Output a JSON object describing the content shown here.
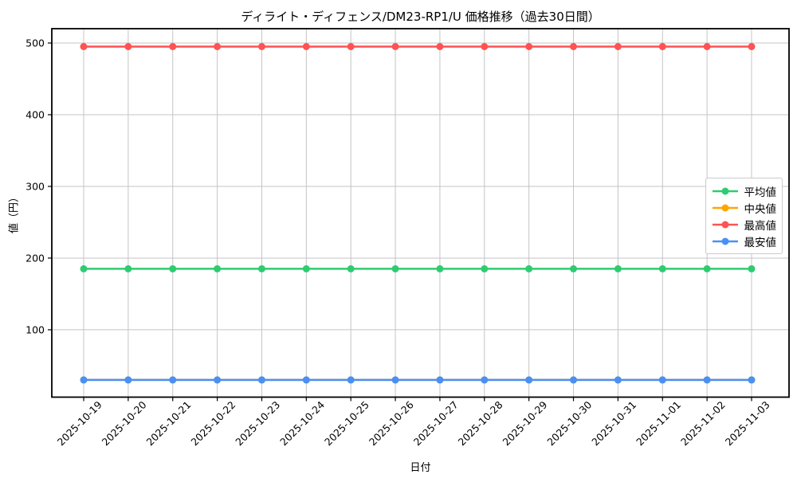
{
  "figure": {
    "title": "ディライト・ディフェンス/DM23-RP1/U 価格推移（過去30日間）",
    "xlabel": "日付",
    "ylabel": "値（円）"
  },
  "chart_data": {
    "type": "line",
    "title": "ディライト・ディフェンス/DM23-RP1/U 価格推移（過去30日間）",
    "xlabel": "日付",
    "ylabel": "値（円）",
    "categories": [
      "2025-10-19",
      "2025-10-20",
      "2025-10-21",
      "2025-10-22",
      "2025-10-23",
      "2025-10-24",
      "2025-10-25",
      "2025-10-26",
      "2025-10-27",
      "2025-10-28",
      "2025-10-29",
      "2025-10-30",
      "2025-10-31",
      "2025-11-01",
      "2025-11-02",
      "2025-11-03"
    ],
    "series": [
      {
        "key": "mean",
        "name": "平均値",
        "color": "#2ecc71",
        "values": [
          185,
          185,
          185,
          185,
          185,
          185,
          185,
          185,
          185,
          185,
          185,
          185,
          185,
          185,
          185,
          185
        ]
      },
      {
        "key": "median",
        "name": "中央値",
        "color": "#ffa500",
        "values": [
          30,
          30,
          30,
          30,
          30,
          30,
          30,
          30,
          30,
          30,
          30,
          30,
          30,
          30,
          30,
          30
        ]
      },
      {
        "key": "max",
        "name": "最高値",
        "color": "#ff5252",
        "values": [
          495,
          495,
          495,
          495,
          495,
          495,
          495,
          495,
          495,
          495,
          495,
          495,
          495,
          495,
          495,
          495
        ]
      },
      {
        "key": "min",
        "name": "最安値",
        "color": "#4a90f4",
        "values": [
          30,
          30,
          30,
          30,
          30,
          30,
          30,
          30,
          30,
          30,
          30,
          30,
          30,
          30,
          30,
          30
        ]
      }
    ],
    "yticks": [
      100,
      200,
      300,
      400,
      500
    ],
    "ylim": [
      6,
      520
    ],
    "grid": true,
    "legend_position": "right-center",
    "note": "中央値 line is fully overlapped (hidden) by the 最安値 line; only green/red/blue lines are visible"
  }
}
